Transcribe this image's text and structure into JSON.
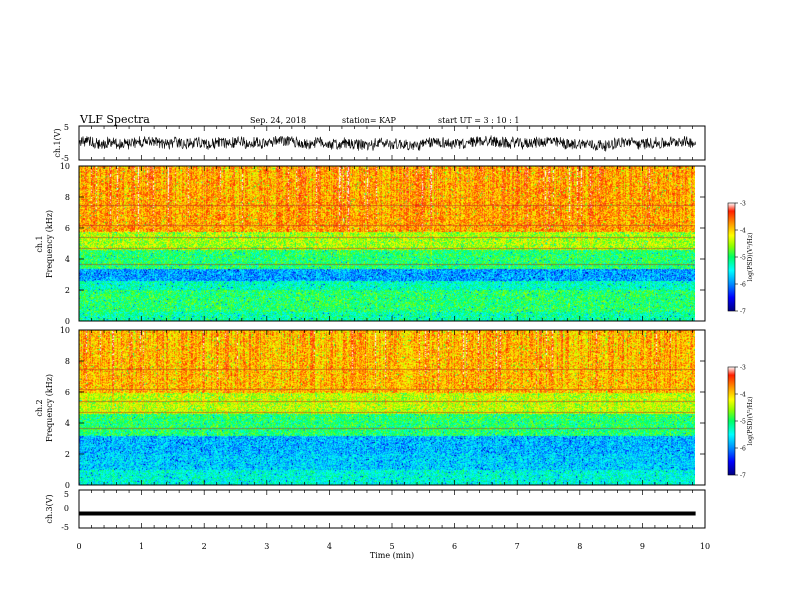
{
  "header": {
    "title": "VLF Spectra",
    "date": "Sep. 24, 2018",
    "station": "station= KAP",
    "start": "start  UT =   3  : 10 : 1"
  },
  "chart_data": [
    {
      "name": "ch1-waveform",
      "type": "line",
      "ylabel": "ch.1(V)",
      "ylim": [
        -5,
        5
      ],
      "yticks": [
        "5",
        "-5"
      ],
      "color": "#000000",
      "note_shape": "noisy trace centered near 0 V, mostly within ±3 V"
    },
    {
      "name": "ch1-spectrogram",
      "type": "heatmap",
      "ylabel_line1": "ch.1",
      "ylabel_line2": "Frequency  (kHz)",
      "ylim": [
        0,
        10
      ],
      "yticks": [
        "0",
        "2",
        "4",
        "6",
        "8",
        "10"
      ],
      "colorbar": {
        "label": "log(PSD)(V²/Hz)",
        "range": [
          -7,
          -3
        ],
        "ticks": [
          "-3",
          "-4",
          "-5",
          "-6",
          "-7"
        ],
        "colors": [
          "#000080",
          "#0000ff",
          "#00a0ff",
          "#00ffff",
          "#00ff60",
          "#80ff00",
          "#ffff00",
          "#ffa000",
          "#ff2000",
          "#ffffff"
        ]
      },
      "bands": [
        {
          "from": 0.0,
          "to": 0.6,
          "level": -5.2
        },
        {
          "from": 0.6,
          "to": 2.0,
          "level": -5.0
        },
        {
          "from": 2.0,
          "to": 2.6,
          "level": -5.3
        },
        {
          "from": 2.6,
          "to": 3.4,
          "level": -5.9
        },
        {
          "from": 3.4,
          "to": 4.6,
          "level": -5.0
        },
        {
          "from": 4.6,
          "to": 5.8,
          "level": -4.5
        },
        {
          "from": 5.8,
          "to": 10.0,
          "level": -3.8
        }
      ]
    },
    {
      "name": "ch2-spectrogram",
      "type": "heatmap",
      "ylabel_line1": "ch.2",
      "ylabel_line2": "Frequency  (kHz)",
      "ylim": [
        0,
        10
      ],
      "yticks": [
        "0",
        "2",
        "4",
        "6",
        "8",
        "10"
      ],
      "colorbar": {
        "label": "log(PSD)(V²/Hz)",
        "range": [
          -7,
          -3
        ],
        "ticks": [
          "-3",
          "-4",
          "-5",
          "-6",
          "-7"
        ]
      },
      "bands": [
        {
          "from": 0.0,
          "to": 1.0,
          "level": -5.4
        },
        {
          "from": 1.0,
          "to": 2.0,
          "level": -5.7
        },
        {
          "from": 2.0,
          "to": 3.2,
          "level": -5.8
        },
        {
          "from": 3.2,
          "to": 4.6,
          "level": -5.0
        },
        {
          "from": 4.6,
          "to": 6.0,
          "level": -4.4
        },
        {
          "from": 6.0,
          "to": 10.0,
          "level": -3.9
        }
      ]
    },
    {
      "name": "ch3-waveform",
      "type": "line",
      "ylabel": "ch.3(V)",
      "ylim": [
        -5,
        5
      ],
      "yticks": [
        "5",
        "0",
        "-5"
      ],
      "constant_value": -1.2,
      "color": "#000000"
    }
  ],
  "xaxis": {
    "label": "Time  (min)",
    "range": [
      0,
      10
    ],
    "ticks": [
      "0",
      "1",
      "2",
      "3",
      "4",
      "5",
      "6",
      "7",
      "8",
      "9",
      "10"
    ],
    "data_end": 9.85
  }
}
